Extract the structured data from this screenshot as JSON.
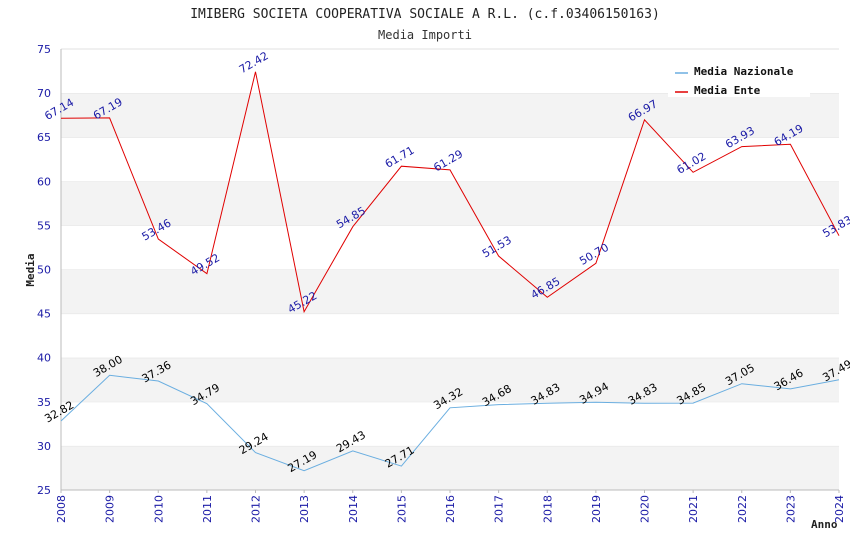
{
  "chart_data": {
    "type": "line",
    "title": "IMIBERG SOCIETA COOPERATIVA SOCIALE A R.L. (c.f.03406150163)",
    "subtitle": "Media Importi",
    "xlabel": "Anno",
    "ylabel": "Media",
    "ylim": [
      25,
      75
    ],
    "yticks": [
      25,
      30,
      35,
      40,
      45,
      50,
      55,
      60,
      65,
      70,
      75
    ],
    "x": [
      "2008",
      "2009",
      "2010",
      "2011",
      "2012",
      "2013",
      "2014",
      "2015",
      "2016",
      "2017",
      "2018",
      "2019",
      "2020",
      "2021",
      "2022",
      "2023",
      "2024"
    ],
    "grid": "horizontal banded",
    "legend_position": "top-right",
    "series": [
      {
        "name": "Media Nazionale",
        "color": "#6aaee0",
        "label_color": "#000000",
        "values": [
          32.82,
          38.0,
          37.36,
          34.79,
          29.24,
          27.19,
          29.43,
          27.71,
          34.32,
          34.68,
          34.83,
          34.94,
          34.83,
          34.85,
          37.05,
          36.46,
          37.49
        ],
        "labels": [
          "32.82",
          "38.00",
          "37.36",
          "34.79",
          "29.24",
          "27.19",
          "29.43",
          "27.71",
          "34.32",
          "34.68",
          "34.83",
          "34.94",
          "34.83",
          "34.85",
          "37.05",
          "36.46",
          "37.49"
        ]
      },
      {
        "name": "Media Ente",
        "color": "#e00000",
        "label_color": "#1a1aa6",
        "values": [
          67.14,
          67.19,
          53.46,
          49.52,
          72.42,
          45.22,
          54.85,
          61.71,
          61.29,
          51.53,
          46.85,
          50.7,
          66.97,
          61.02,
          63.93,
          64.19,
          53.83
        ],
        "labels": [
          "67.14",
          "67.19",
          "53.46",
          "49.52",
          "72.42",
          "45.22",
          "54.85",
          "61.71",
          "61.29",
          "51.53",
          "46.85",
          "50.70",
          "66.97",
          "61.02",
          "63.93",
          "64.19",
          "53.83"
        ]
      }
    ]
  }
}
